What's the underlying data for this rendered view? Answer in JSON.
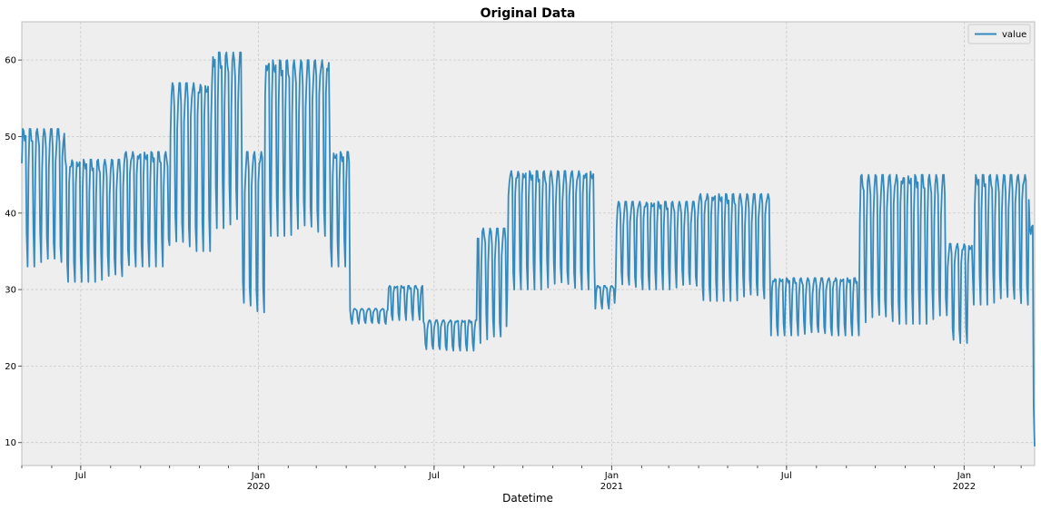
{
  "chart_data": {
    "type": "line",
    "title": "Original Data",
    "xlabel": "Datetime",
    "ylabel": "",
    "ylim": [
      7,
      65
    ],
    "xlim": [
      "2019-05-01",
      "2022-03-15"
    ],
    "grid": true,
    "legend_position": "top-right",
    "colors": {
      "line": "#348abd",
      "background": "#eeeeee",
      "grid": "#cccccc",
      "frame": "#bcbcbc"
    },
    "y_ticks": [
      10,
      20,
      30,
      40,
      50,
      60
    ],
    "x_ticks": [
      {
        "date": "2019-07-01",
        "label": "Jul",
        "sublabel": ""
      },
      {
        "date": "2020-01-01",
        "label": "Jan",
        "sublabel": "2020"
      },
      {
        "date": "2020-07-01",
        "label": "Jul",
        "sublabel": ""
      },
      {
        "date": "2021-01-01",
        "label": "Jan",
        "sublabel": "2021"
      },
      {
        "date": "2021-07-01",
        "label": "Jul",
        "sublabel": ""
      },
      {
        "date": "2022-01-01",
        "label": "Jan",
        "sublabel": "2022"
      }
    ],
    "series": [
      {
        "name": "value",
        "segments": [
          {
            "start": "2019-05-01",
            "end": "2019-06-15",
            "low": 33,
            "high": 51
          },
          {
            "start": "2019-06-15",
            "end": "2019-08-15",
            "low": 31,
            "high": 47
          },
          {
            "start": "2019-08-15",
            "end": "2019-10-01",
            "low": 33,
            "high": 48
          },
          {
            "start": "2019-10-01",
            "end": "2019-11-15",
            "low": 35,
            "high": 57
          },
          {
            "start": "2019-11-15",
            "end": "2019-12-15",
            "low": 38,
            "high": 61
          },
          {
            "start": "2019-12-15",
            "end": "2020-01-08",
            "low": 27,
            "high": 48
          },
          {
            "start": "2020-01-08",
            "end": "2020-03-15",
            "low": 37,
            "high": 60
          },
          {
            "start": "2020-03-15",
            "end": "2020-04-05",
            "low": 33,
            "high": 48
          },
          {
            "start": "2020-04-05",
            "end": "2020-05-15",
            "low": 25.5,
            "high": 27.5
          },
          {
            "start": "2020-05-15",
            "end": "2020-06-20",
            "low": 26,
            "high": 30.5
          },
          {
            "start": "2020-06-20",
            "end": "2020-08-15",
            "low": 22,
            "high": 26
          },
          {
            "start": "2020-08-15",
            "end": "2020-09-15",
            "low": 23,
            "high": 38
          },
          {
            "start": "2020-09-15",
            "end": "2020-12-15",
            "low": 30,
            "high": 45.5
          },
          {
            "start": "2020-12-15",
            "end": "2021-01-05",
            "low": 27.5,
            "high": 30.5
          },
          {
            "start": "2021-01-05",
            "end": "2021-04-01",
            "low": 30,
            "high": 41.5
          },
          {
            "start": "2021-04-01",
            "end": "2021-06-15",
            "low": 28.5,
            "high": 42.5
          },
          {
            "start": "2021-06-15",
            "end": "2021-09-15",
            "low": 24,
            "high": 31.5
          },
          {
            "start": "2021-09-15",
            "end": "2021-12-15",
            "low": 25.5,
            "high": 45
          },
          {
            "start": "2021-12-15",
            "end": "2022-01-10",
            "low": 23,
            "high": 36
          },
          {
            "start": "2022-01-10",
            "end": "2022-03-10",
            "low": 28,
            "high": 45
          },
          {
            "start": "2022-03-10",
            "end": "2022-03-15",
            "low": 9.5,
            "high": 39
          }
        ]
      }
    ]
  }
}
